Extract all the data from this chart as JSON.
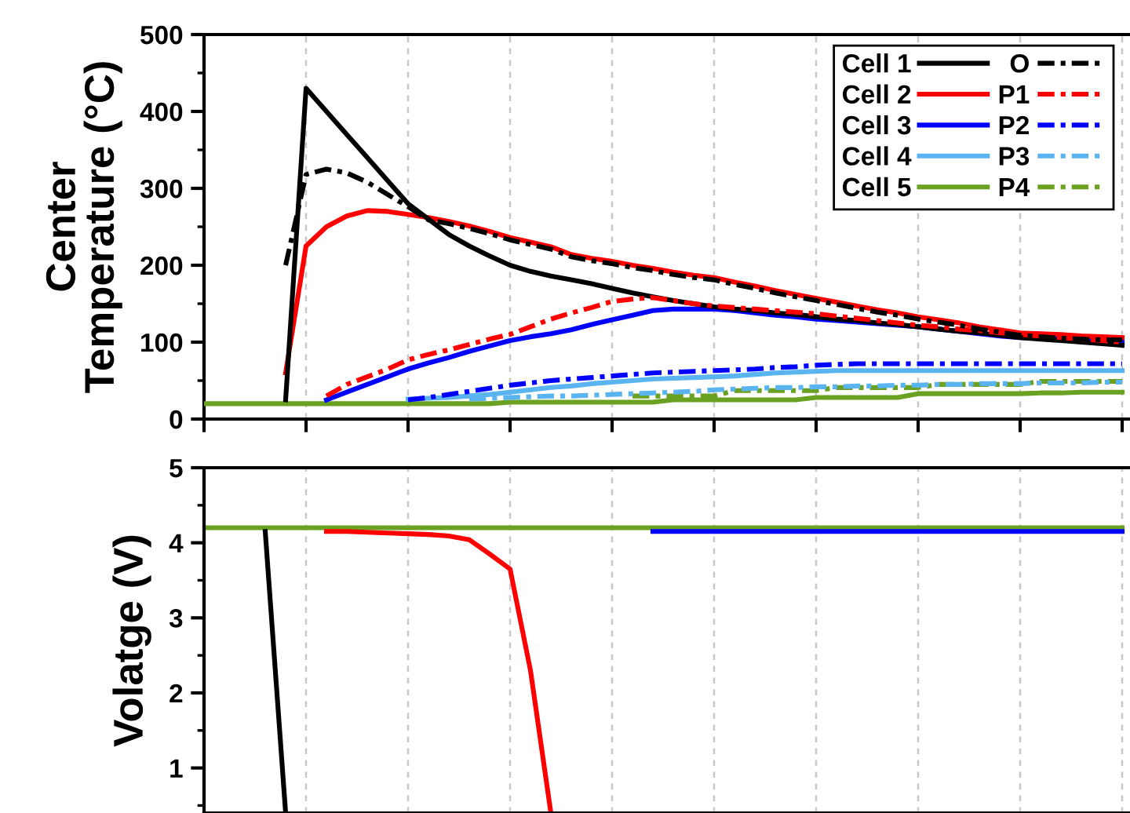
{
  "chart_data": [
    {
      "type": "line",
      "ylabel": "Center\nTemperature (°C)",
      "categories": [
        null,
        null,
        null,
        null,
        null,
        null,
        null,
        null,
        null,
        null,
        null,
        null,
        null,
        null,
        null,
        null,
        null,
        null,
        null,
        null,
        null,
        null,
        null,
        null,
        null,
        null,
        null,
        null,
        null,
        null,
        null,
        null,
        null,
        null,
        null,
        null,
        null,
        null,
        null,
        null,
        null,
        null,
        null,
        null,
        null,
        null
      ],
      "ylim": [
        0,
        500
      ],
      "yticks": [
        0,
        100,
        200,
        300,
        400,
        500
      ],
      "grid": "x",
      "legend": "top right",
      "tick_labels": "y",
      "series": [
        {
          "name": "Cell 1",
          "color": "#000000",
          "line_style": "solid",
          "values": [
            null,
            null,
            null,
            null,
            25,
            430,
            400,
            370,
            340,
            310,
            280,
            260,
            240,
            225,
            212,
            200,
            192,
            186,
            181,
            176,
            170,
            164,
            159,
            154,
            150,
            146,
            143,
            141,
            138,
            136,
            133,
            130,
            128,
            125,
            123,
            120,
            117,
            114,
            112,
            109,
            106,
            104,
            102,
            100,
            98,
            96
          ]
        },
        {
          "name": "Cell 2",
          "color": "#ff0000",
          "line_style": "solid",
          "values": [
            null,
            null,
            null,
            null,
            60,
            225,
            250,
            264,
            271,
            270,
            266,
            262,
            257,
            251,
            244,
            236,
            230,
            224,
            214,
            209,
            205,
            200,
            196,
            191,
            187,
            184,
            178,
            173,
            167,
            162,
            157,
            152,
            147,
            142,
            138,
            133,
            129,
            125,
            120,
            116,
            112,
            111,
            110,
            108,
            107,
            106
          ]
        },
        {
          "name": "Cell 3",
          "color": "#0000ff",
          "line_style": "solid",
          "values": [
            null,
            null,
            null,
            null,
            null,
            null,
            25,
            35,
            45,
            55,
            65,
            73,
            80,
            88,
            95,
            102,
            107,
            111,
            116,
            123,
            129,
            135,
            141,
            143,
            143,
            143,
            141,
            138,
            135,
            133,
            130,
            128,
            126,
            124,
            122,
            120,
            117,
            114,
            111,
            108,
            106,
            105,
            104,
            103,
            102,
            102
          ]
        },
        {
          "name": "Cell 4",
          "color": "#5ab4f0",
          "line_style": "solid",
          "values": [
            null,
            null,
            null,
            null,
            null,
            null,
            null,
            null,
            null,
            null,
            26,
            27,
            28,
            30,
            32,
            35,
            38,
            41,
            43,
            46,
            48,
            50,
            52,
            53,
            54,
            55,
            56,
            58,
            60,
            61,
            62,
            63,
            63,
            63,
            63,
            63,
            63,
            63,
            63,
            63,
            63,
            63,
            63,
            63,
            63,
            63
          ]
        },
        {
          "name": "Cell 5",
          "color": "#6aa121",
          "line_style": "solid",
          "values": [
            20,
            20,
            20,
            20,
            20,
            20,
            20,
            20,
            20,
            20,
            20,
            20,
            20,
            20,
            20,
            22,
            22,
            22,
            22,
            22,
            22,
            22,
            22,
            25,
            25,
            25,
            25,
            25,
            25,
            25,
            28,
            28,
            28,
            28,
            28,
            33,
            33,
            33,
            33,
            33,
            33,
            34,
            34,
            35,
            35,
            35
          ]
        },
        {
          "name": "O",
          "color": "#000000",
          "line_style": "dashdot",
          "values": [
            null,
            null,
            null,
            null,
            200,
            318,
            325,
            320,
            308,
            292,
            276,
            259,
            254,
            248,
            241,
            233,
            227,
            221,
            211,
            206,
            202,
            197,
            193,
            188,
            184,
            181,
            175,
            170,
            164,
            159,
            154,
            149,
            144,
            139,
            135,
            130,
            126,
            122,
            117,
            113,
            109,
            107,
            105,
            104,
            103,
            103
          ]
        },
        {
          "name": "P1",
          "color": "#ff0000",
          "line_style": "dashdot",
          "values": [
            null,
            null,
            null,
            null,
            null,
            null,
            30,
            45,
            55,
            65,
            77,
            84,
            90,
            97,
            104,
            110,
            120,
            130,
            138,
            145,
            153,
            156,
            158,
            154,
            150,
            147,
            145,
            143,
            141,
            139,
            137,
            134,
            131,
            128,
            125,
            122,
            120,
            117,
            115,
            112,
            110,
            108,
            106,
            104,
            102,
            100
          ]
        },
        {
          "name": "P2",
          "color": "#0000ff",
          "line_style": "dashdot",
          "values": [
            null,
            null,
            null,
            null,
            null,
            null,
            null,
            null,
            null,
            null,
            25,
            28,
            32,
            36,
            40,
            44,
            47,
            50,
            52,
            54,
            56,
            58,
            60,
            61,
            62,
            63,
            64,
            65,
            67,
            68,
            70,
            71,
            72,
            72,
            72,
            72,
            72,
            72,
            72,
            72,
            72,
            72,
            72,
            72,
            72,
            72
          ]
        },
        {
          "name": "P3",
          "color": "#5ab4f0",
          "line_style": "dashdot",
          "values": [
            null,
            null,
            null,
            null,
            null,
            null,
            null,
            null,
            null,
            null,
            null,
            null,
            null,
            26,
            27,
            28,
            29,
            30,
            30,
            31,
            32,
            33,
            34,
            35,
            36,
            38,
            39,
            40,
            41,
            41,
            42,
            42,
            43,
            43,
            44,
            44,
            45,
            45,
            46,
            46,
            46,
            47,
            47,
            47,
            48,
            48
          ]
        },
        {
          "name": "P4",
          "color": "#6aa121",
          "line_style": "dashdot",
          "values": [
            null,
            null,
            null,
            null,
            null,
            null,
            null,
            null,
            null,
            null,
            null,
            null,
            null,
            null,
            null,
            null,
            null,
            null,
            null,
            null,
            null,
            30,
            30,
            30,
            30,
            30,
            37,
            37,
            37,
            37,
            37,
            41,
            41,
            41,
            41,
            41,
            45,
            45,
            45,
            45,
            45,
            49,
            49,
            49,
            49,
            49
          ]
        }
      ]
    },
    {
      "type": "line",
      "ylabel": "Volatge (V)",
      "categories": [
        null,
        null,
        null,
        null,
        null,
        null,
        null,
        null,
        null,
        null,
        null,
        null,
        null,
        null,
        null,
        null,
        null,
        null,
        null,
        null,
        null,
        null,
        null,
        null,
        null,
        null,
        null,
        null,
        null,
        null,
        null,
        null,
        null,
        null,
        null,
        null,
        null,
        null,
        null,
        null,
        null,
        null,
        null,
        null,
        null,
        null
      ],
      "ylim": [
        0.4,
        5
      ],
      "yticks": [
        1,
        2,
        3,
        4,
        5
      ],
      "grid": "x",
      "tick_labels": "y",
      "series": [
        {
          "color": "#000000",
          "line_style": "solid",
          "values": [
            null,
            null,
            null,
            4.15,
            0.4,
            null,
            null,
            null,
            null,
            null,
            null,
            null,
            null,
            null,
            null,
            null,
            null,
            null,
            null,
            null,
            null,
            null,
            null,
            null,
            null,
            null,
            null,
            null,
            null,
            null,
            null,
            null,
            null,
            null,
            null,
            null,
            null,
            null,
            null,
            null,
            null,
            null,
            null,
            null,
            null,
            null
          ]
        },
        {
          "color": "#ff0000",
          "line_style": "solid",
          "values": [
            null,
            null,
            null,
            null,
            null,
            null,
            4.15,
            4.15,
            4.14,
            4.13,
            4.12,
            4.11,
            4.09,
            4.04,
            3.85,
            3.65,
            2.3,
            0.4,
            null,
            null,
            null,
            null,
            null,
            null,
            null,
            null,
            null,
            null,
            null,
            null,
            null,
            null,
            null,
            null,
            null,
            null,
            null,
            null,
            null,
            null,
            null,
            null,
            null,
            null,
            null,
            null
          ]
        },
        {
          "color": "#0000ff",
          "line_style": "solid",
          "values": [
            null,
            null,
            null,
            null,
            null,
            null,
            null,
            null,
            null,
            null,
            null,
            null,
            null,
            null,
            null,
            null,
            null,
            null,
            null,
            null,
            null,
            null,
            4.15,
            4.15,
            4.15,
            4.15,
            4.15,
            4.15,
            4.15,
            4.15,
            4.15,
            4.15,
            4.15,
            4.15,
            4.15,
            4.15,
            4.15,
            4.15,
            4.15,
            4.15,
            4.15,
            4.15,
            4.15,
            4.15,
            4.15,
            4.15
          ]
        },
        {
          "color": "#6aa121",
          "line_style": "solid",
          "values": [
            4.2,
            4.2,
            4.2,
            4.2,
            4.2,
            4.2,
            4.2,
            4.2,
            4.2,
            4.2,
            4.2,
            4.2,
            4.2,
            4.2,
            4.2,
            4.2,
            4.2,
            4.2,
            4.2,
            4.2,
            4.2,
            4.2,
            4.2,
            4.2,
            4.2,
            4.2,
            4.2,
            4.2,
            4.2,
            4.2,
            4.2,
            4.2,
            4.2,
            4.2,
            4.2,
            4.2,
            4.2,
            4.2,
            4.2,
            4.2,
            4.2,
            4.2,
            4.2,
            4.2,
            4.2,
            4.2
          ]
        }
      ]
    }
  ]
}
